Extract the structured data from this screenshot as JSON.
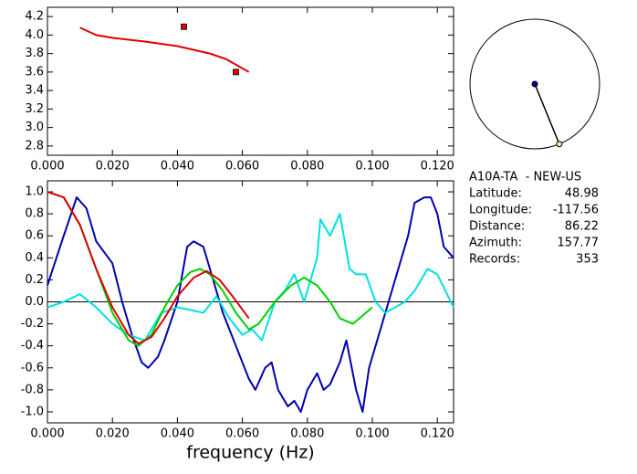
{
  "chart_data": [
    {
      "type": "line",
      "xlim": [
        0,
        0.125
      ],
      "ylim": [
        2.7,
        4.3
      ],
      "xticks": [
        {
          "value": 0,
          "label": "0.000"
        },
        {
          "value": 0.02,
          "label": "0.020"
        },
        {
          "value": 0.04,
          "label": "0.040"
        },
        {
          "value": 0.06,
          "label": "0.060"
        },
        {
          "value": 0.08,
          "label": "0.080"
        },
        {
          "value": 0.1,
          "label": "0.100"
        },
        {
          "value": 0.12,
          "label": "0.120"
        }
      ],
      "yticks": [
        4.2,
        {
          "value": 4.0,
          "label": "4.0"
        },
        3.8,
        3.6,
        3.4,
        3.2,
        {
          "value": 3.0,
          "label": "3.0"
        },
        2.8
      ],
      "series": [
        {
          "color": "#e00000",
          "x": [
            0.01,
            0.015,
            0.02,
            0.03,
            0.04,
            0.05,
            0.055,
            0.062
          ],
          "values": [
            4.08,
            4.0,
            3.97,
            3.93,
            3.88,
            3.8,
            3.74,
            3.6
          ]
        },
        {
          "color": "#e00000",
          "marker": "square",
          "x": [
            0.042,
            0.058
          ],
          "values": [
            4.09,
            3.6
          ]
        }
      ]
    },
    {
      "type": "line",
      "x_label": "frequency (Hz)",
      "xlim": [
        0,
        0.125
      ],
      "ylim": [
        -1.1,
        1.1
      ],
      "xticks": [
        {
          "value": 0,
          "label": "0.000"
        },
        {
          "value": 0.02,
          "label": "0.020"
        },
        {
          "value": 0.04,
          "label": "0.040"
        },
        {
          "value": 0.06,
          "label": "0.060"
        },
        {
          "value": 0.08,
          "label": "0.080"
        },
        {
          "value": 0.1,
          "label": "0.100"
        },
        {
          "value": 0.12,
          "label": "0.120"
        }
      ],
      "yticks": [
        {
          "value": 1.0,
          "label": "1.0"
        },
        0.8,
        0.6,
        0.4,
        0.2,
        {
          "value": 0.0,
          "label": "0.0"
        },
        -0.2,
        -0.4,
        -0.6,
        -0.8,
        {
          "value": -1.0,
          "label": "-1.0"
        }
      ],
      "zero_line": true,
      "series": [
        {
          "color": "#0000b0",
          "x": [
            0,
            0.005,
            0.009,
            0.012,
            0.015,
            0.02,
            0.023,
            0.026,
            0.029,
            0.031,
            0.034,
            0.036,
            0.04,
            0.043,
            0.045,
            0.048,
            0.05,
            0.054,
            0.058,
            0.062,
            0.064,
            0.067,
            0.069,
            0.071,
            0.074,
            0.076,
            0.078,
            0.08,
            0.083,
            0.085,
            0.087,
            0.09,
            0.092,
            0.095,
            0.097,
            0.099,
            0.102,
            0.105,
            0.108,
            0.111,
            0.113,
            0.116,
            0.118,
            0.12,
            0.122,
            0.125
          ],
          "values": [
            0.15,
            0.6,
            0.95,
            0.85,
            0.55,
            0.35,
            0.0,
            -0.3,
            -0.55,
            -0.6,
            -0.5,
            -0.35,
            0.0,
            0.5,
            0.55,
            0.5,
            0.3,
            -0.1,
            -0.4,
            -0.7,
            -0.8,
            -0.6,
            -0.55,
            -0.8,
            -0.95,
            -0.9,
            -1.0,
            -0.8,
            -0.65,
            -0.8,
            -0.75,
            -0.55,
            -0.35,
            -0.8,
            -1.0,
            -0.6,
            -0.3,
            0.0,
            0.3,
            0.6,
            0.9,
            0.95,
            0.95,
            0.8,
            0.5,
            0.4
          ]
        },
        {
          "color": "#00e0e0",
          "x": [
            0,
            0.005,
            0.01,
            0.015,
            0.02,
            0.025,
            0.03,
            0.035,
            0.04,
            0.045,
            0.048,
            0.052,
            0.056,
            0.06,
            0.063,
            0.066,
            0.07,
            0.073,
            0.076,
            0.079,
            0.083,
            0.084,
            0.087,
            0.09,
            0.093,
            0.095,
            0.098,
            0.101,
            0.104,
            0.107,
            0.11,
            0.113,
            0.117,
            0.12,
            0.125
          ],
          "values": [
            -0.05,
            0.0,
            0.07,
            -0.05,
            -0.2,
            -0.3,
            -0.35,
            -0.1,
            -0.05,
            -0.08,
            -0.1,
            0.05,
            -0.15,
            -0.3,
            -0.25,
            -0.35,
            0.0,
            0.1,
            0.25,
            0.0,
            0.4,
            0.75,
            0.6,
            0.8,
            0.3,
            0.25,
            0.25,
            0.0,
            -0.1,
            -0.05,
            0.0,
            0.1,
            0.3,
            0.25,
            -0.05
          ]
        },
        {
          "color": "#00d000",
          "x": [
            0,
            0.005,
            0.01,
            0.015,
            0.02,
            0.025,
            0.028,
            0.032,
            0.036,
            0.04,
            0.044,
            0.047,
            0.05,
            0.054,
            0.058,
            0.062,
            0.065,
            0.07,
            0.075,
            0.079,
            0.083,
            0.087,
            0.09,
            0.094,
            0.1
          ],
          "values": [
            1.0,
            0.95,
            0.7,
            0.3,
            -0.1,
            -0.35,
            -0.4,
            -0.3,
            -0.05,
            0.15,
            0.27,
            0.3,
            0.25,
            0.1,
            -0.1,
            -0.25,
            -0.2,
            0.0,
            0.15,
            0.22,
            0.15,
            0.0,
            -0.15,
            -0.2,
            -0.05
          ]
        },
        {
          "color": "#e00000",
          "x": [
            0,
            0.005,
            0.01,
            0.015,
            0.02,
            0.025,
            0.028,
            0.032,
            0.036,
            0.04,
            0.045,
            0.049,
            0.053,
            0.057,
            0.062
          ],
          "values": [
            1.0,
            0.95,
            0.7,
            0.3,
            -0.05,
            -0.3,
            -0.38,
            -0.32,
            -0.15,
            0.05,
            0.22,
            0.28,
            0.2,
            0.05,
            -0.15
          ]
        }
      ]
    }
  ],
  "station": {
    "name": "A10A-TA  - NEW-US",
    "rows": [
      {
        "label": "Latitude:",
        "value": 48.98
      },
      {
        "label": "Longitude:",
        "value": -117.56
      },
      {
        "label": "Distance:",
        "value": 86.22
      },
      {
        "label": "Azimuth:",
        "value": 157.77
      },
      {
        "label": "Records:",
        "value": 353
      }
    ]
  }
}
